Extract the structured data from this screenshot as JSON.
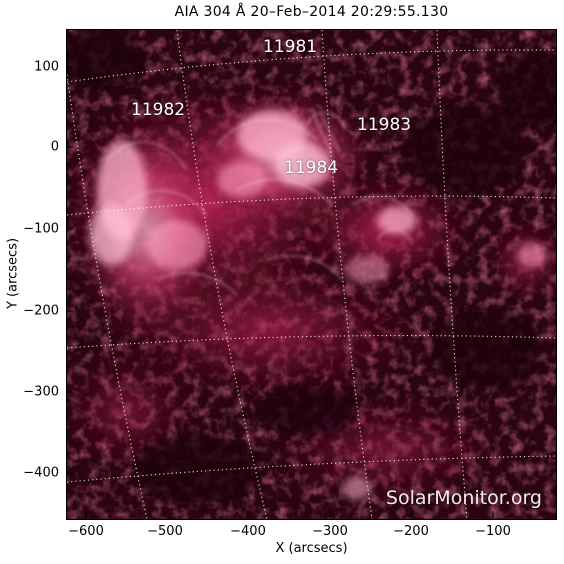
{
  "title": "AIA 304 Å 20–Feb–2014 20:29:55.130",
  "x_axis": {
    "label": "X (arcsecs)",
    "ticks": [
      "−600",
      "−500",
      "−400",
      "−300",
      "−200",
      "−100"
    ]
  },
  "y_axis": {
    "label": "Y (arcsecs)",
    "ticks": [
      "100",
      "0",
      "−100",
      "−200",
      "−300",
      "−400"
    ]
  },
  "regions": [
    {
      "label": "11981"
    },
    {
      "label": "11982"
    },
    {
      "label": "11983"
    },
    {
      "label": "11984"
    }
  ],
  "watermark": "SolarMonitor.org",
  "colors": {
    "background": "#1a0208",
    "plasma_dark": "#3a0515",
    "plasma_mid": "#a11a44",
    "plasma_bright": "#ff7ea8",
    "grid": "#ffffff"
  }
}
